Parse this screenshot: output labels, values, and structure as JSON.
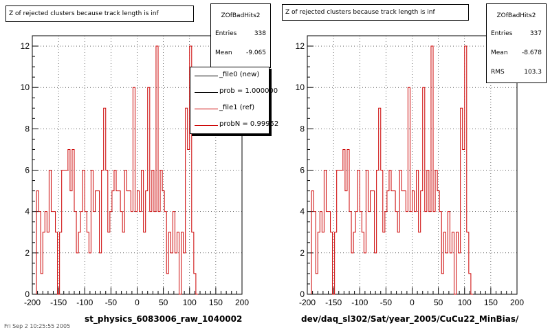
{
  "chart_data": [
    {
      "type": "histogram",
      "title": "Z of rejected clusters  because track length is inf",
      "xlabel": "st_physics_6083006_raw_1040002",
      "ylabel": "",
      "xlim": [
        -200,
        200
      ],
      "ylim": [
        0,
        12.5
      ],
      "xticks": [
        -200,
        -150,
        -100,
        -50,
        0,
        50,
        100,
        150,
        200
      ],
      "yticks": [
        0,
        2,
        4,
        6,
        8,
        10,
        12
      ],
      "grid": true,
      "bin_width": 4,
      "x_start": -192,
      "series": [
        {
          "name": "_file1 (ref)",
          "color": "#cc0000",
          "values": [
            5,
            4,
            1,
            3,
            4,
            3,
            6,
            4,
            4,
            3,
            0,
            3,
            6,
            6,
            6,
            7,
            5,
            7,
            4,
            2,
            3,
            4,
            6,
            4,
            3,
            2,
            6,
            4,
            5,
            5,
            2,
            6,
            9,
            6,
            3,
            4,
            5,
            6,
            5,
            5,
            4,
            3,
            6,
            5,
            5,
            4,
            10,
            4,
            5,
            4,
            6,
            3,
            5,
            10,
            4,
            6,
            4,
            12,
            4,
            6,
            5,
            4,
            1,
            3,
            2,
            4,
            2,
            3,
            0,
            3,
            2,
            9,
            7,
            12,
            3,
            1,
            0
          ]
        }
      ],
      "stats": {
        "name": "ZOfBadHits2",
        "entries_label": "Entries",
        "entries": "338",
        "mean_label": "Mean",
        "mean": "-9.065"
      },
      "legend": [
        {
          "label": "_file0 (new)",
          "color": "#000000"
        },
        {
          "label": "prob = 1.000000",
          "color": "#000000"
        },
        {
          "label": "_file1 (ref)",
          "color": "#cc0000"
        },
        {
          "label": "probN = 0.99952",
          "color": "#cc0000"
        }
      ]
    },
    {
      "type": "histogram",
      "title": "Z of rejected clusters  because track length is inf",
      "xlabel": "dev/daq_sl302/Sat/year_2005/CuCu22_MinBias/",
      "ylabel": "",
      "xlim": [
        -200,
        200
      ],
      "ylim": [
        0,
        12.5
      ],
      "xticks": [
        -200,
        -150,
        -100,
        -50,
        0,
        50,
        100,
        150,
        200
      ],
      "yticks": [
        0,
        2,
        4,
        6,
        8,
        10,
        12
      ],
      "grid": true,
      "bin_width": 4,
      "x_start": -192,
      "series": [
        {
          "name": "",
          "color": "#cc0000",
          "values": [
            5,
            4,
            1,
            3,
            4,
            3,
            6,
            4,
            4,
            3,
            0,
            3,
            6,
            6,
            6,
            7,
            5,
            7,
            4,
            2,
            3,
            4,
            6,
            4,
            3,
            2,
            6,
            4,
            5,
            5,
            2,
            6,
            9,
            6,
            3,
            4,
            5,
            6,
            5,
            5,
            4,
            3,
            6,
            5,
            5,
            4,
            10,
            4,
            5,
            4,
            6,
            3,
            5,
            10,
            4,
            6,
            4,
            12,
            4,
            6,
            5,
            4,
            1,
            3,
            2,
            4,
            2,
            3,
            0,
            3,
            2,
            9,
            7,
            12,
            3,
            1,
            0
          ]
        }
      ],
      "stats": {
        "name": "ZOfBadHits2",
        "entries_label": "Entries",
        "entries": "337",
        "mean_label": "Mean",
        "mean": "-8.678",
        "rms_label": "RMS",
        "rms": "103.3"
      }
    }
  ],
  "footer": "Fri Sep  2 10:25:55 2005"
}
